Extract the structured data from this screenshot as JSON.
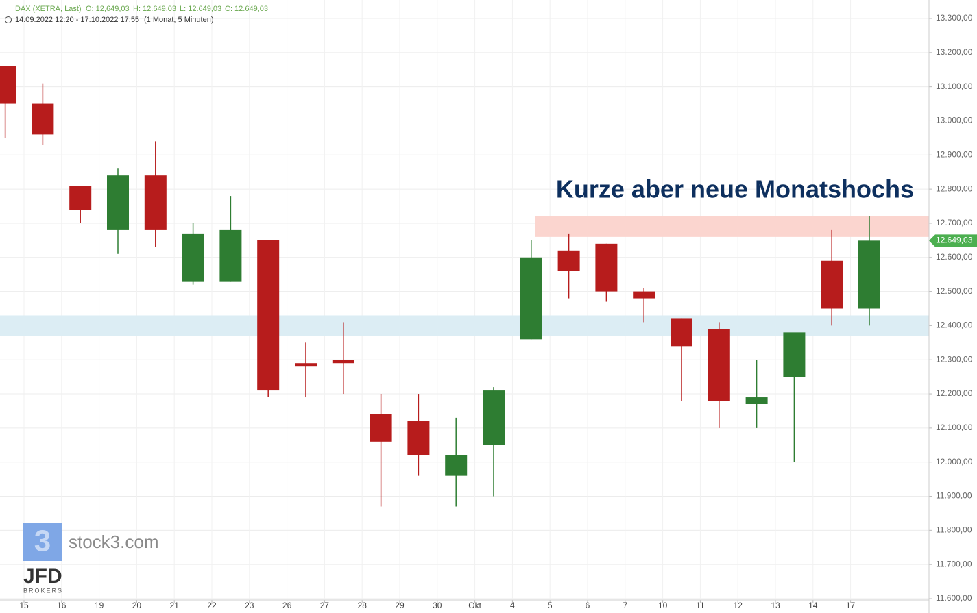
{
  "header": {
    "instrument": "DAX (XETRA, Last)",
    "open": "O: 12,649,03",
    "high": "H: 12.649,03",
    "low": "L: 12.649,03",
    "close": "C: 12.649,03",
    "range": "14.09.2022 12:20 - 17.10.2022 17:55",
    "resolution": "(1 Monat, 5 Minuten)"
  },
  "watermark": {
    "site": "stock3.com",
    "broker": "JFD",
    "broker_sub": "BROKERS"
  },
  "chart_data": {
    "type": "candlestick",
    "annotation": "Kurze aber neue Monatshochs",
    "categories": [
      null,
      "15",
      "16",
      "19",
      "20",
      "21",
      "22",
      "23",
      "26",
      "27",
      "28",
      "29",
      "30",
      "Okt",
      "4",
      "5",
      "6",
      "7",
      "10",
      "11",
      "12",
      "13",
      "14",
      "17"
    ],
    "open": [
      13160,
      13050,
      12810,
      12680,
      12840,
      12530,
      12530,
      12650,
      12290,
      12300,
      12140,
      12120,
      11960,
      12050,
      12360,
      12620,
      12640,
      12500,
      12420,
      12390,
      12170,
      12250,
      12590,
      12450
    ],
    "high": [
      13160,
      13110,
      12810,
      12860,
      12940,
      12700,
      12780,
      12650,
      12350,
      12410,
      12200,
      12200,
      12130,
      12220,
      12650,
      12670,
      12640,
      12510,
      12420,
      12410,
      12300,
      12370,
      12680,
      12720
    ],
    "low": [
      12950,
      12930,
      12700,
      12610,
      12630,
      12520,
      12530,
      12190,
      12190,
      12200,
      11870,
      11960,
      11870,
      11900,
      12360,
      12480,
      12470,
      12410,
      12180,
      12100,
      12100,
      12000,
      12400,
      12400
    ],
    "close": [
      13050,
      12960,
      12740,
      12840,
      12680,
      12670,
      12680,
      12210,
      12280,
      12290,
      12060,
      12020,
      12020,
      12210,
      12600,
      12560,
      12500,
      12480,
      12340,
      12180,
      12190,
      12380,
      12450,
      12649.03
    ],
    "up_color": "#2e7d32",
    "down_color": "#b71c1c",
    "last_label": "12.649,03",
    "last_color": "#4caf50",
    "zones": [
      {
        "from": 12660,
        "to": 12720,
        "color": "#fbd5cf",
        "start_category": "5"
      },
      {
        "from": 12370,
        "to": 12430,
        "color": "#dcedf4"
      }
    ],
    "ylim": [
      11600,
      13300
    ],
    "yticks": [
      {
        "value": 11600,
        "label": "11.600,00"
      },
      {
        "value": 11700,
        "label": "11.700,00"
      },
      {
        "value": 11800,
        "label": "11.800,00"
      },
      {
        "value": 11900,
        "label": "11.900,00"
      },
      {
        "value": 12000,
        "label": "12.000,00"
      },
      {
        "value": 12100,
        "label": "12.100,00"
      },
      {
        "value": 12200,
        "label": "12.200,00"
      },
      {
        "value": 12300,
        "label": "12.300,00"
      },
      {
        "value": 12400,
        "label": "12.400,00"
      },
      {
        "value": 12500,
        "label": "12.500,00"
      },
      {
        "value": 12600,
        "label": "12.600,00"
      },
      {
        "value": 12700,
        "label": "12.700,00"
      },
      {
        "value": 12800,
        "label": "12.800,00"
      },
      {
        "value": 12900,
        "label": "12.900,00"
      },
      {
        "value": 13000,
        "label": "13.000,00"
      },
      {
        "value": 13100,
        "label": "13.100,00"
      },
      {
        "value": 13200,
        "label": "13.200,00"
      },
      {
        "value": 13300,
        "label": "13.300,00"
      }
    ],
    "grid": true
  }
}
